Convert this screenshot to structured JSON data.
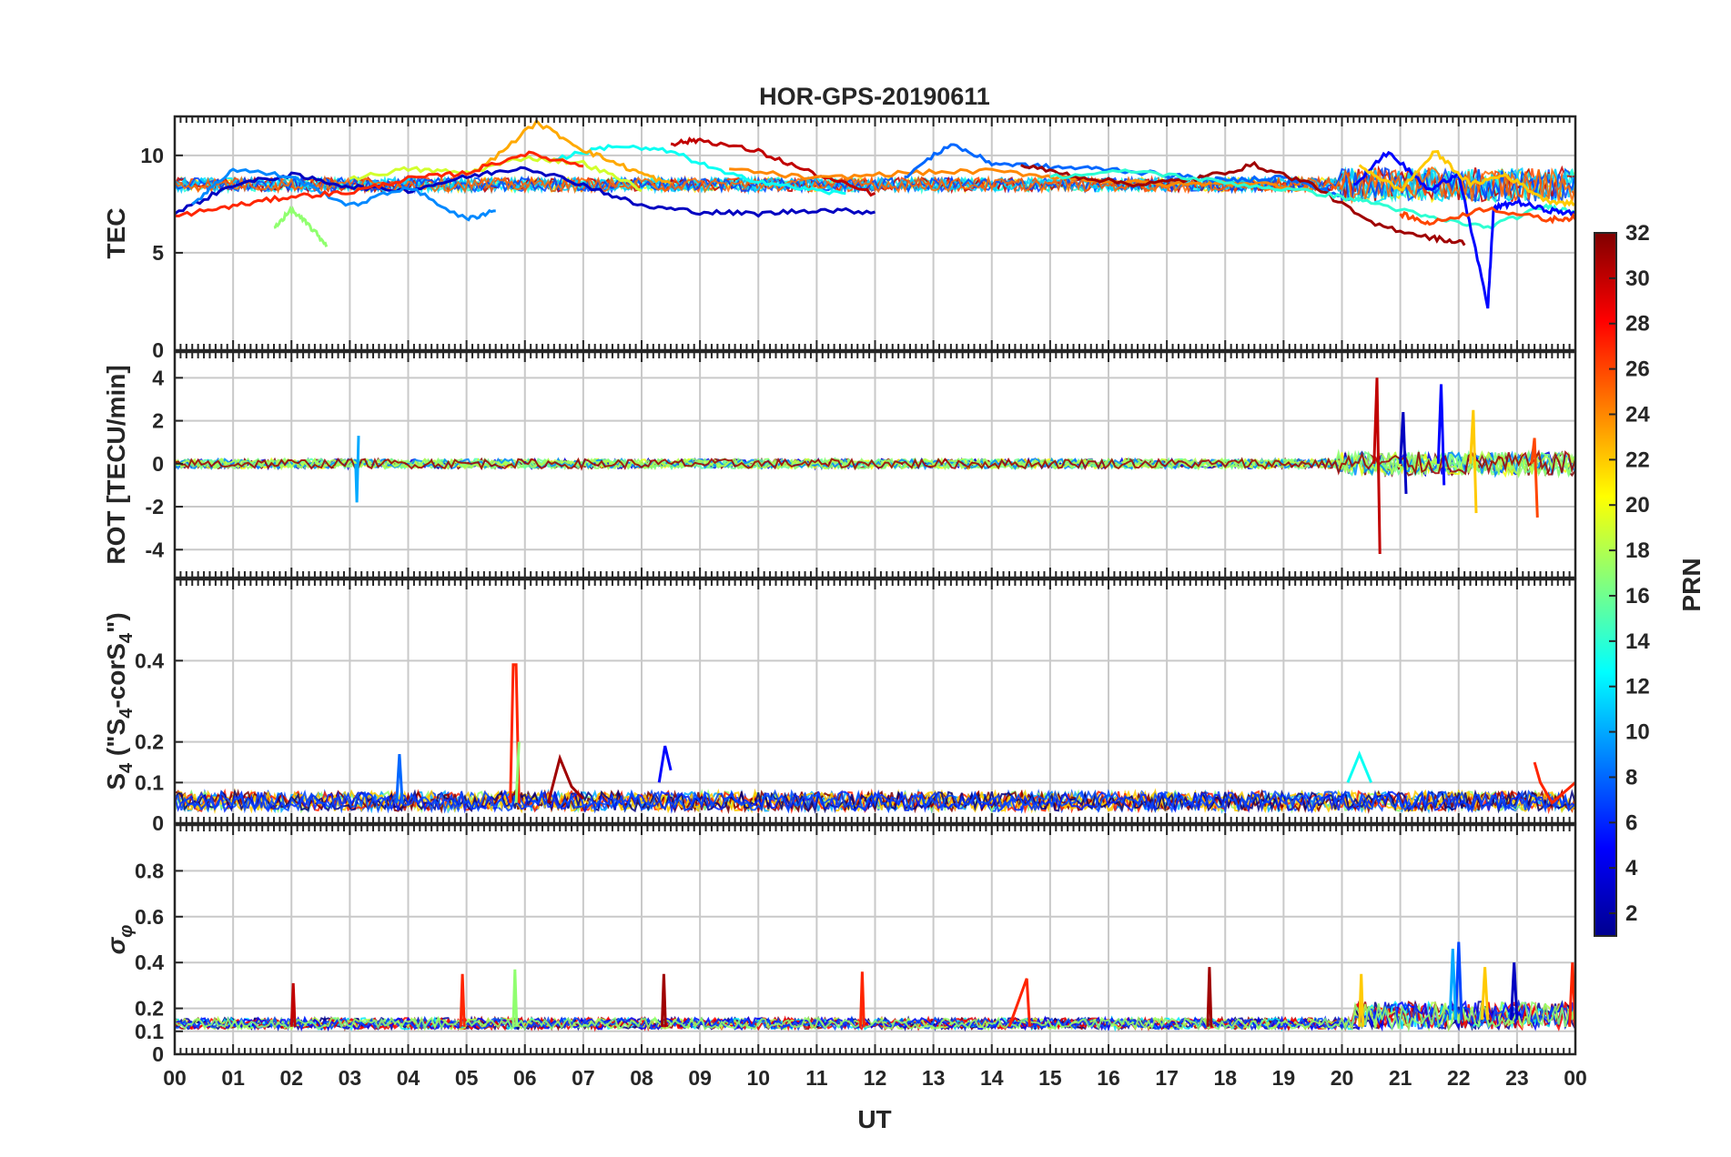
{
  "chart_data": {
    "type": "line",
    "title": "HOR-GPS-20190611",
    "xlabel": "UT",
    "x_tick_labels": [
      "00",
      "01",
      "02",
      "03",
      "04",
      "05",
      "06",
      "07",
      "08",
      "09",
      "10",
      "11",
      "12",
      "13",
      "14",
      "15",
      "16",
      "17",
      "18",
      "19",
      "20",
      "21",
      "22",
      "23",
      "00"
    ],
    "xlim": [
      0,
      24
    ],
    "grid": true,
    "panels": [
      {
        "id": "tec",
        "ylabel": "TEC",
        "ylim": [
          0,
          12
        ],
        "y_ticks": [
          0,
          5,
          10
        ],
        "y_tick_labels": [
          "0",
          "5",
          "10"
        ],
        "baseline": 8.5,
        "noise": 0.35,
        "disturbed_after": 20,
        "series": [
          {
            "prn": 3,
            "x": [
              0,
              1,
              2,
              3,
              4,
              5,
              6,
              7,
              8,
              9,
              10,
              11,
              12
            ],
            "y": [
              7.0,
              8.5,
              9.0,
              8.4,
              8.2,
              8.9,
              9.4,
              8.5,
              7.4,
              7.1,
              7.0,
              7.2,
              7.1
            ]
          },
          {
            "prn": 9,
            "x": [
              0.3,
              1.0,
              2.0,
              3.0,
              4.0,
              5.0,
              5.5
            ],
            "y": [
              7.5,
              9.3,
              8.9,
              7.4,
              8.4,
              6.7,
              7.2
            ]
          },
          {
            "prn": 13,
            "x": [
              6.5,
              7.5,
              8.5,
              9.5,
              10.5,
              11.5
            ],
            "y": [
              9.8,
              10.5,
              10.2,
              9.0,
              8.4,
              8.0
            ]
          },
          {
            "prn": 17,
            "x": [
              1.7,
              2.0,
              2.3,
              2.6
            ],
            "y": [
              6.3,
              7.2,
              6.4,
              5.4
            ]
          },
          {
            "prn": 19,
            "x": [
              3.0,
              4.0,
              5.0,
              6.0,
              7.0,
              8.0
            ],
            "y": [
              8.8,
              9.3,
              9.1,
              9.9,
              9.6,
              8.3
            ]
          },
          {
            "prn": 23,
            "x": [
              5.2,
              6.2,
              7.0,
              7.8,
              8.5
            ],
            "y": [
              9.2,
              11.7,
              10.3,
              9.3,
              8.5
            ]
          },
          {
            "prn": 27,
            "x": [
              0.0,
              1.0,
              2.0,
              3.0,
              4.0,
              5.0,
              6.0,
              7.0
            ],
            "y": [
              6.9,
              7.4,
              7.9,
              8.1,
              8.8,
              9.1,
              10.1,
              9.5
            ]
          },
          {
            "prn": 30,
            "x": [
              8.5,
              9.0,
              10.0,
              11.0,
              12.0
            ],
            "y": [
              10.6,
              10.8,
              10.2,
              9.0,
              8.0
            ]
          },
          {
            "prn": 24,
            "x": [
              9.5,
              11.0,
              12.5,
              14.0,
              15.5,
              17.0,
              18.5,
              19.5
            ],
            "y": [
              9.3,
              8.8,
              9.1,
              9.2,
              8.8,
              8.5,
              8.6,
              8.2
            ]
          },
          {
            "prn": 8,
            "x": [
              12.5,
              13.3,
              14.0,
              15.0,
              16.0,
              17.0,
              18.0,
              19.0,
              20.0
            ],
            "y": [
              8.9,
              10.6,
              9.6,
              9.4,
              9.3,
              9.0,
              8.7,
              8.9,
              7.9
            ]
          },
          {
            "prn": 31,
            "x": [
              14.5,
              15.5,
              16.5,
              17.5,
              18.5,
              19.5,
              20.5,
              21.5,
              22.1
            ],
            "y": [
              9.5,
              8.9,
              8.5,
              8.8,
              9.5,
              8.5,
              6.5,
              5.8,
              5.5
            ]
          },
          {
            "prn": 14,
            "x": [
              15.0,
              16.5,
              18.0,
              19.5,
              20.5,
              21.5,
              22.5,
              23.5,
              24.0
            ],
            "y": [
              8.9,
              9.2,
              8.6,
              8.1,
              7.6,
              6.8,
              6.3,
              7.4,
              7.1
            ]
          },
          {
            "prn": 5,
            "x": [
              20.2,
              20.8,
              21.5,
              22.0,
              22.5,
              22.6,
              23.0,
              23.5,
              24.0
            ],
            "y": [
              8.5,
              10.2,
              8.2,
              9.1,
              2.2,
              7.3,
              7.6,
              7.2,
              7.0
            ]
          },
          {
            "prn": 22,
            "x": [
              20.3,
              21.0,
              21.6,
              22.2,
              22.8,
              23.5,
              24.0
            ],
            "y": [
              9.5,
              8.2,
              10.2,
              8.5,
              9.0,
              7.7,
              7.5
            ]
          },
          {
            "prn": 26,
            "x": [
              21.0,
              21.5,
              22.5,
              23.5,
              24.0
            ],
            "y": [
              7.0,
              6.5,
              7.3,
              6.7,
              6.8
            ]
          }
        ]
      },
      {
        "id": "rot",
        "ylabel": "ROT [TECU/min]",
        "ylim": [
          -5.3,
          5.2
        ],
        "y_ticks": [
          -4,
          -2,
          0,
          2,
          4
        ],
        "y_tick_labels": [
          "-4",
          "-2",
          "0",
          "2",
          "4"
        ],
        "baseline": 0,
        "noise": 0.22,
        "disturbed_after": 19.9,
        "series": [
          {
            "prn": 10,
            "x": [
              3.1,
              3.12,
              3.15
            ],
            "y": [
              0,
              -1.8,
              1.3
            ]
          },
          {
            "prn": 30,
            "x": [
              20.55,
              20.6,
              20.65
            ],
            "y": [
              0,
              4.0,
              -4.2
            ]
          },
          {
            "prn": 3,
            "x": [
              21.0,
              21.05,
              21.1
            ],
            "y": [
              0,
              2.4,
              -1.4
            ]
          },
          {
            "prn": 5,
            "x": [
              21.65,
              21.7,
              21.75
            ],
            "y": [
              0,
              3.7,
              -1.0
            ]
          },
          {
            "prn": 22,
            "x": [
              22.2,
              22.25,
              22.3
            ],
            "y": [
              0,
              2.5,
              -2.3
            ]
          },
          {
            "prn": 26,
            "x": [
              23.25,
              23.3,
              23.35
            ],
            "y": [
              0,
              1.2,
              -2.5
            ]
          }
        ]
      },
      {
        "id": "s4",
        "ylabel": "S4 (\"S4-corS4\")",
        "ylim": [
          0,
          0.6
        ],
        "y_ticks": [
          0,
          0.1,
          0.2,
          0.4
        ],
        "y_tick_labels": [
          "0",
          "0.1",
          "0.2",
          "0.4"
        ],
        "baseline": 0.03,
        "noise": 0.03,
        "disturbed_after": 99,
        "series": [
          {
            "prn": 27,
            "x": [
              5.75,
              5.8,
              5.85,
              5.9
            ],
            "y": [
              0.05,
              0.39,
              0.39,
              0.05
            ]
          },
          {
            "prn": 17,
            "x": [
              5.85,
              5.9
            ],
            "y": [
              0.05,
              0.2
            ]
          },
          {
            "prn": 31,
            "x": [
              6.4,
              6.6,
              6.8,
              7.0
            ],
            "y": [
              0.05,
              0.16,
              0.09,
              0.06
            ]
          },
          {
            "prn": 5,
            "x": [
              8.3,
              8.4,
              8.5
            ],
            "y": [
              0.1,
              0.19,
              0.13
            ]
          },
          {
            "prn": 13,
            "x": [
              20.1,
              20.3,
              20.5
            ],
            "y": [
              0.1,
              0.17,
              0.1
            ]
          },
          {
            "prn": 27,
            "x": [
              23.3,
              23.4,
              23.6,
              24.0
            ],
            "y": [
              0.15,
              0.1,
              0.05,
              0.1
            ]
          },
          {
            "prn": 8,
            "x": [
              3.8,
              3.85,
              3.9
            ],
            "y": [
              0.05,
              0.17,
              0.05
            ]
          }
        ]
      },
      {
        "id": "sigma",
        "ylabel": "σφ",
        "ylim": [
          0,
          1
        ],
        "y_ticks": [
          0,
          0.1,
          0.2,
          0.4,
          0.6,
          0.8
        ],
        "y_tick_labels": [
          "0",
          "0.1",
          "0.2",
          "0.4",
          "0.6",
          "0.8"
        ],
        "baseline": 0.11,
        "noise": 0.03,
        "disturbed_after": 20.2,
        "series": [
          {
            "prn": 30,
            "x": [
              2.0,
              2.03,
              2.06
            ],
            "y": [
              0.12,
              0.31,
              0.12
            ]
          },
          {
            "prn": 27,
            "x": [
              4.9,
              4.93,
              4.96
            ],
            "y": [
              0.12,
              0.35,
              0.12
            ]
          },
          {
            "prn": 17,
            "x": [
              5.8,
              5.83,
              5.86
            ],
            "y": [
              0.12,
              0.37,
              0.12
            ]
          },
          {
            "prn": 31,
            "x": [
              8.35,
              8.38,
              8.41
            ],
            "y": [
              0.12,
              0.35,
              0.12
            ]
          },
          {
            "prn": 27,
            "x": [
              11.75,
              11.78,
              11.81
            ],
            "y": [
              0.12,
              0.36,
              0.12
            ]
          },
          {
            "prn": 27,
            "x": [
              14.3,
              14.6,
              14.65
            ],
            "y": [
              0.12,
              0.33,
              0.12
            ]
          },
          {
            "prn": 31,
            "x": [
              17.7,
              17.73,
              17.76
            ],
            "y": [
              0.12,
              0.38,
              0.12
            ]
          },
          {
            "prn": 22,
            "x": [
              20.3,
              20.33,
              20.36
            ],
            "y": [
              0.12,
              0.35,
              0.12
            ]
          },
          {
            "prn": 7,
            "x": [
              21.95,
              22.0,
              22.05
            ],
            "y": [
              0.15,
              0.49,
              0.15
            ]
          },
          {
            "prn": 10,
            "x": [
              21.85,
              21.9,
              21.95
            ],
            "y": [
              0.15,
              0.46,
              0.15
            ]
          },
          {
            "prn": 22,
            "x": [
              22.4,
              22.45,
              22.5
            ],
            "y": [
              0.15,
              0.38,
              0.15
            ]
          },
          {
            "prn": 3,
            "x": [
              22.9,
              22.95,
              23.0
            ],
            "y": [
              0.15,
              0.4,
              0.15
            ]
          },
          {
            "prn": 27,
            "x": [
              23.9,
              23.95,
              24.0
            ],
            "y": [
              0.12,
              0.4,
              0.12
            ]
          }
        ]
      }
    ],
    "colorbar": {
      "label": "PRN",
      "min": 1,
      "max": 32,
      "tick_labels": [
        "2",
        "4",
        "6",
        "8",
        "10",
        "12",
        "14",
        "16",
        "18",
        "20",
        "22",
        "24",
        "26",
        "28",
        "30",
        "32"
      ],
      "colormap": "jet"
    }
  }
}
